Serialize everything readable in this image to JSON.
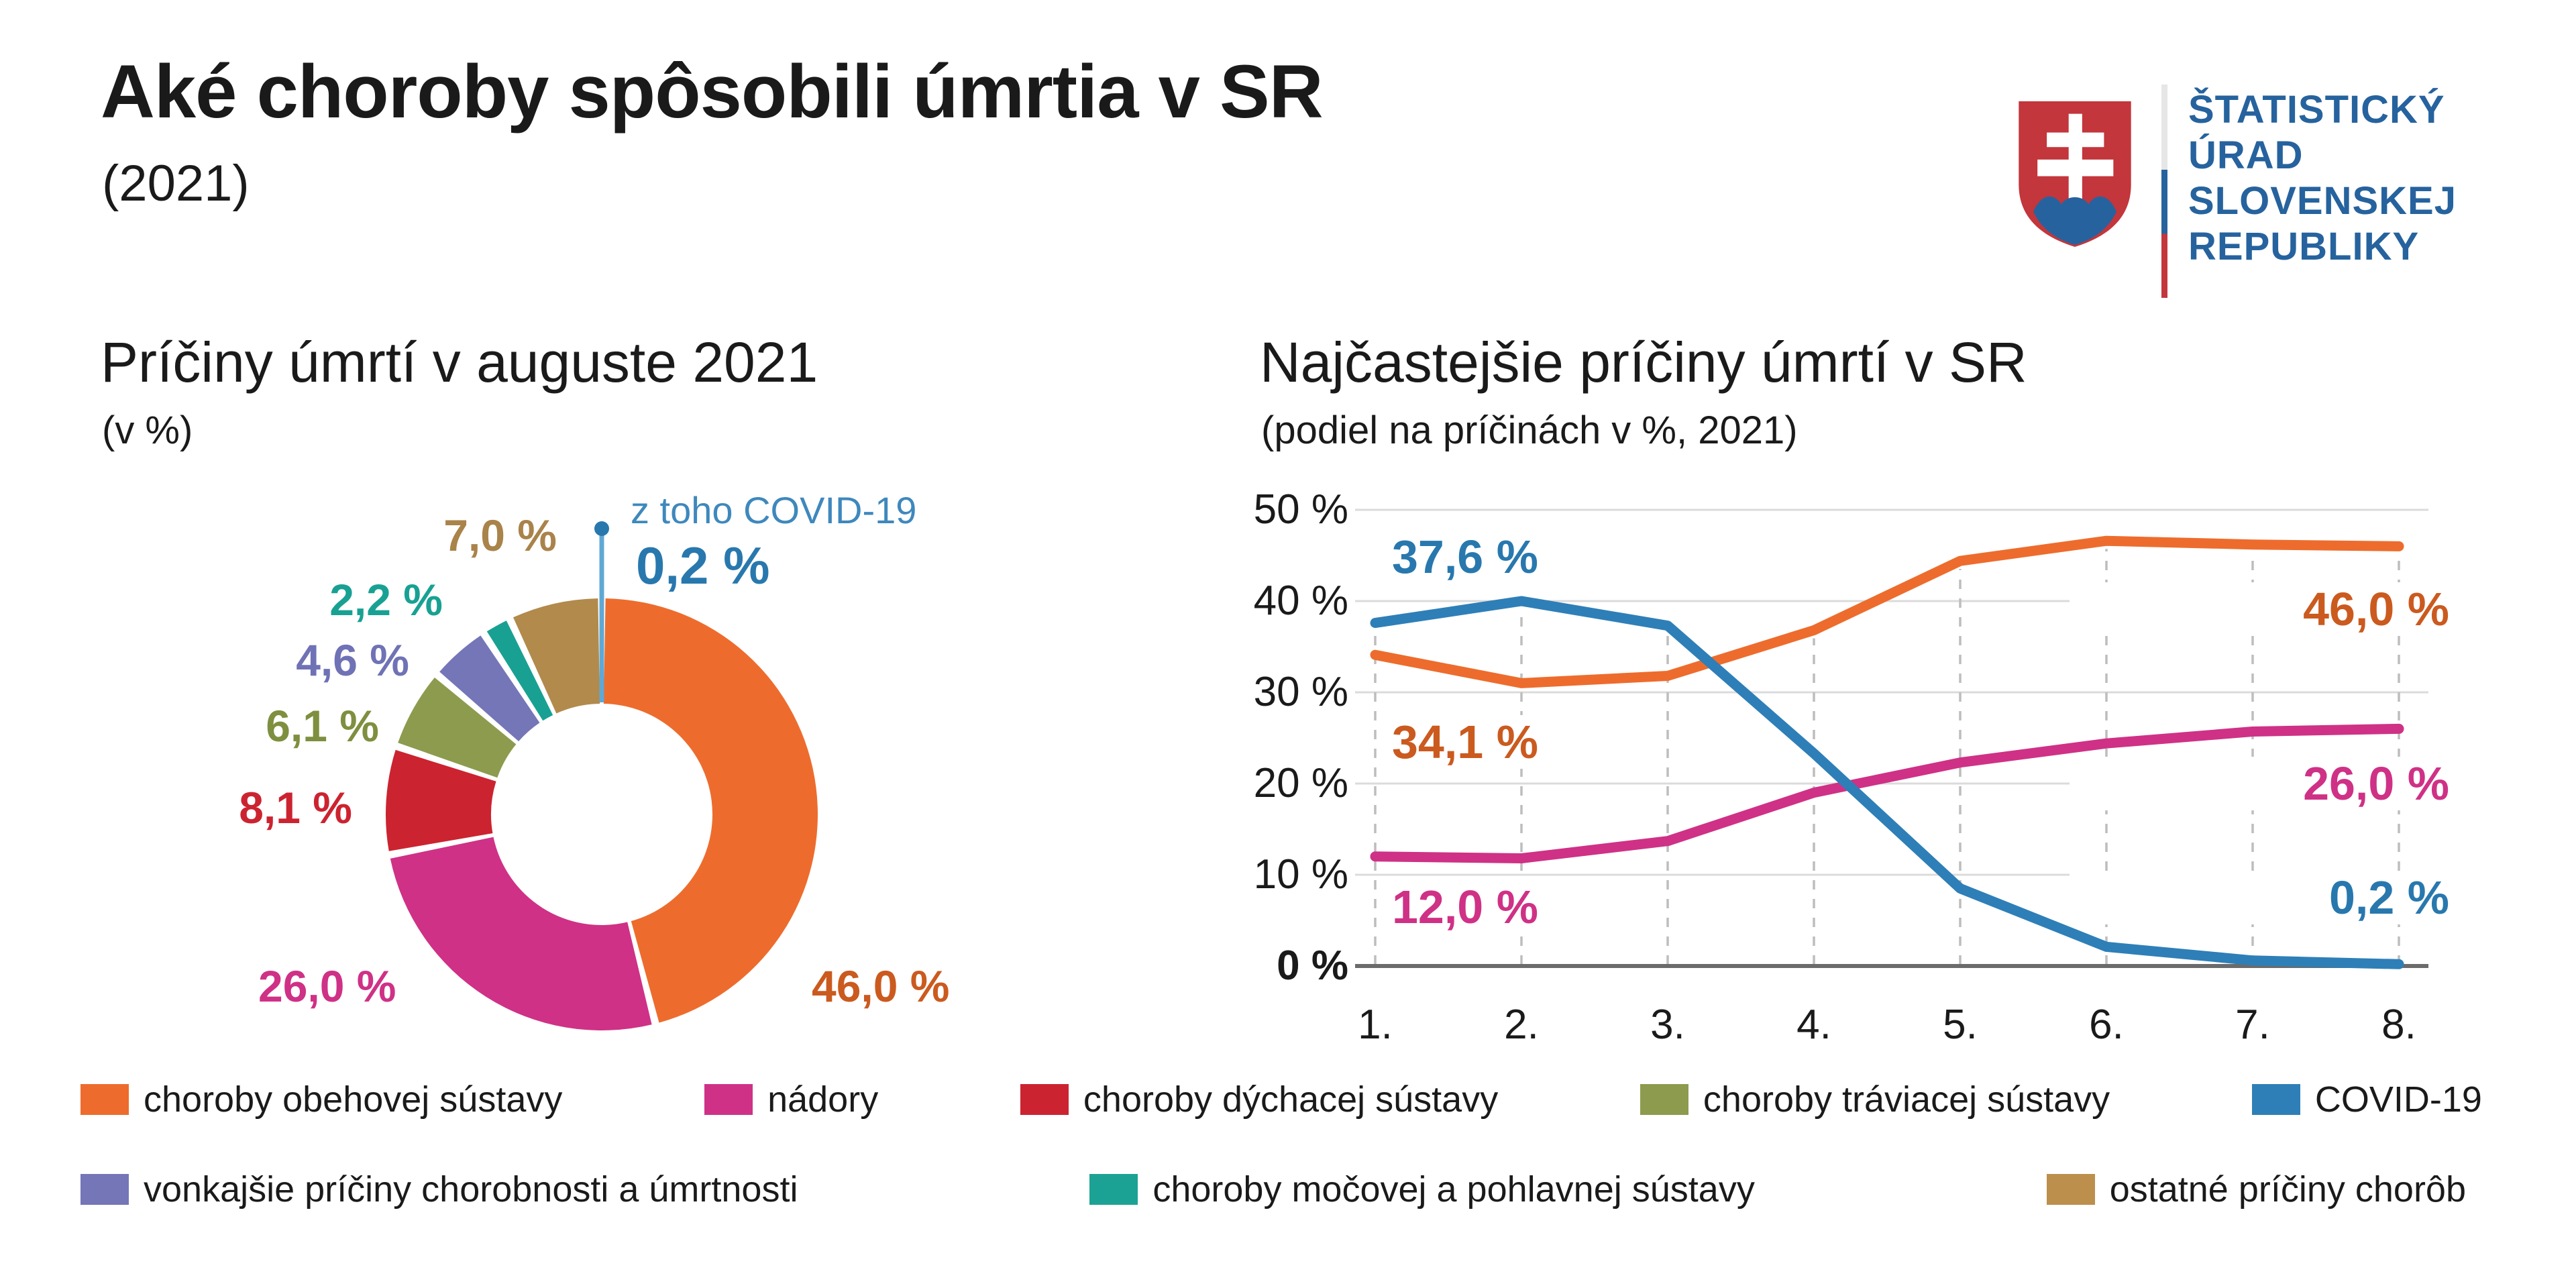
{
  "page": {
    "title": "Aké choroby spôsobili úmrtia v SR",
    "subtitle": "(2021)"
  },
  "logo": {
    "name": "statisticky-urad-slovenskej-republiky",
    "lines": [
      "ŠTATISTICKÝ",
      "ÚRAD",
      "SLOVENSKEJ",
      "REPUBLIKY"
    ],
    "text_color": "#26639E",
    "shield_red": "#C2363C",
    "shield_blue": "#26639E"
  },
  "chart_data": [
    {
      "type": "pie",
      "donut": true,
      "title": "Príčiny úmrtí v auguste 2021",
      "subtitle": "(v %)",
      "slices": [
        {
          "label": "choroby obehovej sústavy",
          "value": 46.0,
          "display": "46,0 %",
          "color": "#ED6C2D",
          "label_color": "#CB5A1F"
        },
        {
          "label": "nádory",
          "value": 26.0,
          "display": "26,0 %",
          "color": "#CF3186",
          "label_color": "#CF3186"
        },
        {
          "label": "choroby dýchacej sústavy",
          "value": 8.1,
          "display": "8,1 %",
          "color": "#CC2330",
          "label_color": "#CC2330"
        },
        {
          "label": "choroby tráviacej sústavy",
          "value": 6.1,
          "display": "6,1 %",
          "color": "#8C9B4E",
          "label_color": "#7E8F3F"
        },
        {
          "label": "vonkajšie príčiny chorobnosti a úmrtnosti",
          "value": 4.6,
          "display": "4,6 %",
          "color": "#7476B8",
          "label_color": "#6F72B5"
        },
        {
          "label": "choroby močovej a pohlavnej sústavy",
          "value": 2.2,
          "display": "2,2 %",
          "color": "#18A193",
          "label_color": "#18A193"
        },
        {
          "label": "ostatné príčiny chorôb",
          "value": 7.0,
          "display": "7,0 %",
          "color": "#B28A4C",
          "label_color": "#A9834A"
        }
      ],
      "callout": {
        "label": "z toho COVID-19",
        "value": "0,2 %",
        "line_color": "#5FA8D5",
        "dot_color": "#2878AE"
      }
    },
    {
      "type": "line",
      "title": "Najčastejšie príčiny úmrtí v SR",
      "subtitle": "(podiel na príčinách v %, 2021)",
      "x": [
        "1.",
        "2.",
        "3.",
        "4.",
        "5.",
        "6.",
        "7.",
        "8."
      ],
      "ylim": [
        0,
        50
      ],
      "yticks": [
        "50 %",
        "40 %",
        "30 %",
        "20 %",
        "10 %",
        "0 %"
      ],
      "grid": {
        "h_color": "#DBDBDB",
        "axis_color": "#6B6B6B",
        "v_dash_color": "#BDBDBD"
      },
      "series": [
        {
          "name": "choroby obehovej sústavy",
          "color": "#ED6C2D",
          "label_color": "#CB5A1F",
          "values": [
            34.1,
            31.0,
            31.8,
            36.8,
            44.4,
            46.6,
            46.2,
            46.0
          ],
          "start_label": "34,1 %",
          "end_label": "46,0 %"
        },
        {
          "name": "nádory",
          "color": "#CF3186",
          "label_color": "#CF3186",
          "values": [
            12.0,
            11.8,
            13.7,
            19.0,
            22.3,
            24.4,
            25.7,
            26.0
          ],
          "start_label": "12,0 %",
          "end_label": "26,0 %"
        },
        {
          "name": "COVID-19",
          "color": "#2E7FB7",
          "label_color": "#2878AE",
          "values": [
            37.6,
            40.0,
            37.3,
            23.3,
            8.5,
            2.1,
            0.6,
            0.2
          ],
          "start_label": "37,6 %",
          "end_label": "0,2 %"
        }
      ]
    }
  ],
  "legend": {
    "rows": [
      [
        {
          "label": "choroby obehovej sústavy",
          "color": "#ED6C2D"
        },
        {
          "label": "nádory",
          "color": "#CF3186"
        },
        {
          "label": "choroby dýchacej sústavy",
          "color": "#CC2330"
        },
        {
          "label": "choroby tráviacej sústavy",
          "color": "#8C9B4E"
        },
        {
          "label": "COVID-19",
          "color": "#2E7FB7"
        }
      ],
      [
        {
          "label": "vonkajšie príčiny chorobnosti a úmrtnosti",
          "color": "#7476B8"
        },
        {
          "label": "choroby močovej a pohlavnej sústavy",
          "color": "#1BA294"
        },
        {
          "label": "ostatné príčiny chorôb",
          "color": "#BC8F4C"
        }
      ]
    ]
  }
}
